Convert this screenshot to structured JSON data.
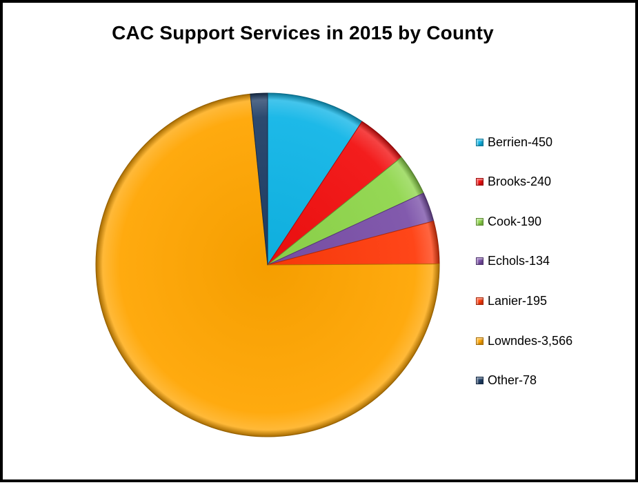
{
  "chart_data": {
    "type": "pie",
    "title": "CAC Support Services in 2015 by County",
    "categories": [
      "Berrien",
      "Brooks",
      "Cook",
      "Echols",
      "Lanier",
      "Lowndes",
      "Other"
    ],
    "values": [
      450,
      240,
      190,
      134,
      195,
      3566,
      78
    ],
    "legend_labels": [
      "Berrien-450",
      "Brooks-240",
      "Cook-190",
      "Echols-134",
      "Lanier-195",
      "Lowndes-3,566",
      "Other-78"
    ],
    "colors": [
      "#0FB5E6",
      "#F20F0F",
      "#8ED64A",
      "#7A4FA8",
      "#FF3A0A",
      "#FFA500",
      "#1F3E66"
    ],
    "legend_position": "right",
    "start_angle": "12 o'clock, clockwise"
  },
  "icons": {
    "legend_marker": "bevel-square-icon"
  }
}
